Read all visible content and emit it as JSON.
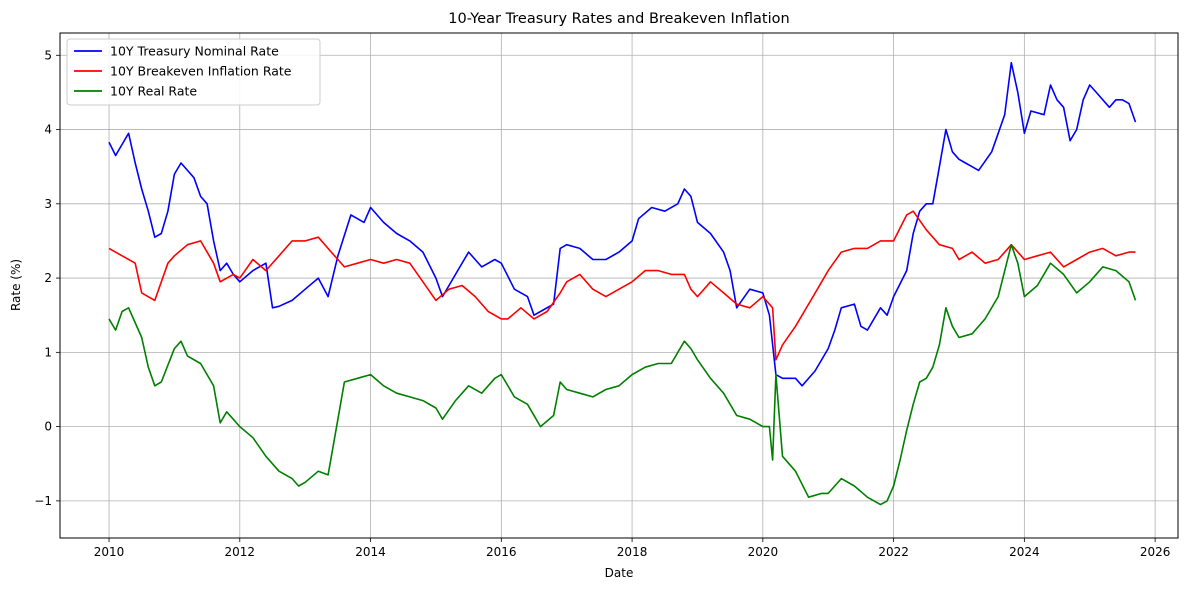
{
  "chart_data": {
    "type": "line",
    "title": "10-Year Treasury Rates and Breakeven Inflation",
    "xlabel": "Date",
    "ylabel": "Rate (%)",
    "xlim": [
      2009.25,
      2026.35
    ],
    "ylim": [
      -1.5,
      5.3
    ],
    "x_ticks": [
      2010,
      2012,
      2014,
      2016,
      2018,
      2020,
      2022,
      2024,
      2026
    ],
    "y_ticks": [
      -1,
      0,
      1,
      2,
      3,
      4,
      5
    ],
    "grid": true,
    "legend_position": "top-left",
    "series": [
      {
        "name": "10Y Treasury Nominal Rate",
        "color": "#0000ff",
        "x": [
          2010.0,
          2010.1,
          2010.2,
          2010.3,
          2010.4,
          2010.5,
          2010.6,
          2010.7,
          2010.8,
          2010.9,
          2011.0,
          2011.1,
          2011.2,
          2011.3,
          2011.4,
          2011.5,
          2011.6,
          2011.7,
          2011.8,
          2011.9,
          2012.0,
          2012.2,
          2012.4,
          2012.5,
          2012.6,
          2012.8,
          2013.0,
          2013.2,
          2013.35,
          2013.5,
          2013.7,
          2013.9,
          2014.0,
          2014.2,
          2014.4,
          2014.6,
          2014.8,
          2015.0,
          2015.1,
          2015.3,
          2015.5,
          2015.7,
          2015.9,
          2016.0,
          2016.2,
          2016.4,
          2016.5,
          2016.6,
          2016.8,
          2016.9,
          2017.0,
          2017.2,
          2017.4,
          2017.6,
          2017.8,
          2018.0,
          2018.1,
          2018.3,
          2018.5,
          2018.7,
          2018.8,
          2018.9,
          2019.0,
          2019.2,
          2019.4,
          2019.5,
          2019.6,
          2019.8,
          2020.0,
          2020.1,
          2020.2,
          2020.3,
          2020.5,
          2020.6,
          2020.8,
          2021.0,
          2021.1,
          2021.2,
          2021.4,
          2021.5,
          2021.6,
          2021.8,
          2021.9,
          2022.0,
          2022.2,
          2022.3,
          2022.4,
          2022.5,
          2022.6,
          2022.7,
          2022.8,
          2022.9,
          2023.0,
          2023.1,
          2023.2,
          2023.3,
          2023.5,
          2023.6,
          2023.7,
          2023.8,
          2023.9,
          2024.0,
          2024.1,
          2024.3,
          2024.4,
          2024.5,
          2024.6,
          2024.7,
          2024.8,
          2024.9,
          2025.0,
          2025.1,
          2025.3,
          2025.4,
          2025.5,
          2025.6,
          2025.7
        ],
        "values": [
          3.83,
          3.65,
          3.8,
          3.95,
          3.55,
          3.2,
          2.9,
          2.55,
          2.6,
          2.9,
          3.4,
          3.55,
          3.45,
          3.35,
          3.1,
          3.0,
          2.5,
          2.1,
          2.2,
          2.05,
          1.95,
          2.1,
          2.2,
          1.6,
          1.62,
          1.7,
          1.85,
          2.0,
          1.75,
          2.3,
          2.85,
          2.75,
          2.95,
          2.75,
          2.6,
          2.5,
          2.35,
          2.0,
          1.75,
          2.05,
          2.35,
          2.15,
          2.25,
          2.2,
          1.85,
          1.75,
          1.5,
          1.55,
          1.65,
          2.4,
          2.45,
          2.4,
          2.25,
          2.25,
          2.35,
          2.5,
          2.8,
          2.95,
          2.9,
          3.0,
          3.2,
          3.1,
          2.75,
          2.6,
          2.35,
          2.1,
          1.6,
          1.85,
          1.8,
          1.5,
          0.7,
          0.65,
          0.65,
          0.55,
          0.75,
          1.05,
          1.3,
          1.6,
          1.65,
          1.35,
          1.3,
          1.6,
          1.5,
          1.75,
          2.1,
          2.6,
          2.9,
          3.0,
          3.0,
          3.5,
          4.0,
          3.7,
          3.6,
          3.55,
          3.5,
          3.45,
          3.7,
          3.95,
          4.2,
          4.9,
          4.5,
          3.95,
          4.25,
          4.2,
          4.6,
          4.4,
          4.3,
          3.85,
          4.0,
          4.4,
          4.6,
          4.5,
          4.3,
          4.4,
          4.4,
          4.35,
          4.1
        ]
      },
      {
        "name": "10Y Breakeven Inflation Rate",
        "color": "#ff0000",
        "x": [
          2010.0,
          2010.2,
          2010.4,
          2010.5,
          2010.7,
          2010.9,
          2011.0,
          2011.2,
          2011.4,
          2011.6,
          2011.7,
          2011.9,
          2012.0,
          2012.2,
          2012.4,
          2012.6,
          2012.8,
          2013.0,
          2013.2,
          2013.4,
          2013.6,
          2013.8,
          2014.0,
          2014.2,
          2014.4,
          2014.6,
          2014.8,
          2015.0,
          2015.2,
          2015.4,
          2015.6,
          2015.8,
          2016.0,
          2016.1,
          2016.3,
          2016.5,
          2016.7,
          2016.9,
          2017.0,
          2017.2,
          2017.4,
          2017.6,
          2017.8,
          2018.0,
          2018.2,
          2018.4,
          2018.6,
          2018.8,
          2018.9,
          2019.0,
          2019.2,
          2019.4,
          2019.6,
          2019.8,
          2020.0,
          2020.15,
          2020.2,
          2020.3,
          2020.5,
          2020.7,
          2020.9,
          2021.0,
          2021.2,
          2021.4,
          2021.6,
          2021.8,
          2022.0,
          2022.2,
          2022.3,
          2022.5,
          2022.7,
          2022.9,
          2023.0,
          2023.2,
          2023.4,
          2023.6,
          2023.8,
          2024.0,
          2024.2,
          2024.4,
          2024.6,
          2024.8,
          2025.0,
          2025.2,
          2025.4,
          2025.6,
          2025.7
        ],
        "values": [
          2.4,
          2.3,
          2.2,
          1.8,
          1.7,
          2.2,
          2.3,
          2.45,
          2.5,
          2.2,
          1.95,
          2.05,
          2.0,
          2.25,
          2.1,
          2.3,
          2.5,
          2.5,
          2.55,
          2.35,
          2.15,
          2.2,
          2.25,
          2.2,
          2.25,
          2.2,
          1.95,
          1.7,
          1.85,
          1.9,
          1.75,
          1.55,
          1.45,
          1.45,
          1.6,
          1.45,
          1.55,
          1.8,
          1.95,
          2.05,
          1.85,
          1.75,
          1.85,
          1.95,
          2.1,
          2.1,
          2.05,
          2.05,
          1.85,
          1.75,
          1.95,
          1.8,
          1.65,
          1.6,
          1.75,
          1.6,
          0.9,
          1.1,
          1.35,
          1.65,
          1.95,
          2.1,
          2.35,
          2.4,
          2.4,
          2.5,
          2.5,
          2.85,
          2.9,
          2.65,
          2.45,
          2.4,
          2.25,
          2.35,
          2.2,
          2.25,
          2.45,
          2.25,
          2.3,
          2.35,
          2.15,
          2.25,
          2.35,
          2.4,
          2.3,
          2.35,
          2.35
        ]
      },
      {
        "name": "10Y Real Rate",
        "color": "#008000",
        "x": [
          2010.0,
          2010.1,
          2010.2,
          2010.3,
          2010.5,
          2010.6,
          2010.7,
          2010.8,
          2011.0,
          2011.1,
          2011.2,
          2011.4,
          2011.6,
          2011.7,
          2011.8,
          2012.0,
          2012.2,
          2012.4,
          2012.6,
          2012.8,
          2012.9,
          2013.0,
          2013.2,
          2013.35,
          2013.5,
          2013.6,
          2013.8,
          2014.0,
          2014.2,
          2014.4,
          2014.6,
          2014.8,
          2015.0,
          2015.1,
          2015.3,
          2015.5,
          2015.7,
          2015.9,
          2016.0,
          2016.2,
          2016.4,
          2016.6,
          2016.8,
          2016.9,
          2017.0,
          2017.2,
          2017.4,
          2017.6,
          2017.8,
          2018.0,
          2018.2,
          2018.4,
          2018.6,
          2018.8,
          2018.9,
          2019.0,
          2019.2,
          2019.4,
          2019.6,
          2019.8,
          2020.0,
          2020.1,
          2020.15,
          2020.2,
          2020.3,
          2020.5,
          2020.7,
          2020.9,
          2021.0,
          2021.2,
          2021.4,
          2021.6,
          2021.8,
          2021.9,
          2022.0,
          2022.1,
          2022.2,
          2022.3,
          2022.4,
          2022.5,
          2022.6,
          2022.7,
          2022.8,
          2022.9,
          2023.0,
          2023.2,
          2023.4,
          2023.6,
          2023.8,
          2023.9,
          2024.0,
          2024.2,
          2024.4,
          2024.6,
          2024.8,
          2025.0,
          2025.2,
          2025.4,
          2025.6,
          2025.7
        ],
        "values": [
          1.45,
          1.3,
          1.55,
          1.6,
          1.2,
          0.8,
          0.55,
          0.6,
          1.05,
          1.15,
          0.95,
          0.85,
          0.55,
          0.05,
          0.2,
          0.0,
          -0.15,
          -0.4,
          -0.6,
          -0.7,
          -0.8,
          -0.75,
          -0.6,
          -0.65,
          0.1,
          0.6,
          0.65,
          0.7,
          0.55,
          0.45,
          0.4,
          0.35,
          0.25,
          0.1,
          0.35,
          0.55,
          0.45,
          0.65,
          0.7,
          0.4,
          0.3,
          0.0,
          0.15,
          0.6,
          0.5,
          0.45,
          0.4,
          0.5,
          0.55,
          0.7,
          0.8,
          0.85,
          0.85,
          1.15,
          1.05,
          0.9,
          0.65,
          0.45,
          0.15,
          0.1,
          0.0,
          0.0,
          -0.45,
          0.7,
          -0.4,
          -0.6,
          -0.95,
          -0.9,
          -0.9,
          -0.7,
          -0.8,
          -0.95,
          -1.05,
          -1.0,
          -0.8,
          -0.45,
          -0.05,
          0.3,
          0.6,
          0.65,
          0.8,
          1.1,
          1.6,
          1.35,
          1.2,
          1.25,
          1.45,
          1.75,
          2.45,
          2.2,
          1.75,
          1.9,
          2.2,
          2.05,
          1.8,
          1.95,
          2.15,
          2.1,
          1.95,
          1.7
        ]
      }
    ]
  }
}
